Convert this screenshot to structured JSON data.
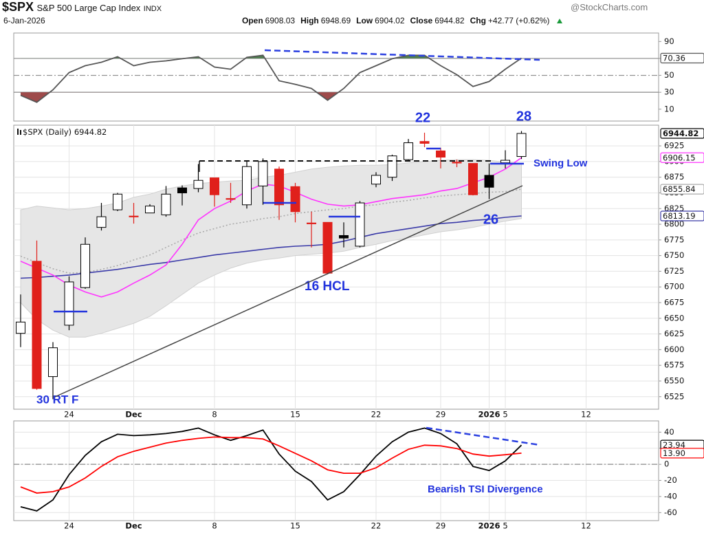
{
  "header": {
    "symbol": "$SPX",
    "name": "S&P 500 Large Cap Index",
    "exchange": "INDX",
    "date": "6-Jan-2026",
    "source": "@StockCharts.com",
    "quote": [
      {
        "label": "Open",
        "value": 6908.03
      },
      {
        "label": "High",
        "value": 6948.69
      },
      {
        "label": "Low",
        "value": 6904.02
      },
      {
        "label": "Close",
        "value": 6944.82
      },
      {
        "label": "Chg",
        "value": "+42.77 (+0.62%)"
      }
    ]
  },
  "chart_data": [
    {
      "type": "line",
      "ylim": [
        -4,
        100
      ],
      "yticks": [
        10,
        30,
        50,
        70,
        90
      ],
      "grid": false,
      "hlines": [
        {
          "value": 70
        },
        {
          "value": 50,
          "dash": "dashdot"
        },
        {
          "value": 30
        }
      ],
      "fill_above": {
        "level": 70,
        "color": "#4f7f4f"
      },
      "fill_below": {
        "level": 30,
        "color": "#9e4a4a"
      },
      "series": [
        {
          "color": "#555555",
          "values": [
            26.3,
            18.2,
            32.9,
            53.3,
            61.4,
            65.5,
            72,
            61.4,
            65.5,
            67.1,
            69.6,
            72,
            59.8,
            57.3,
            71.2,
            73.7,
            43.5,
            39.4,
            34.5,
            20.6,
            34.5,
            53.3,
            61.4,
            69.6,
            73.7,
            73.7,
            61.4,
            50.8,
            36.9,
            42.7,
            57.3,
            70.36,
            null,
            null,
            null,
            null,
            null,
            null,
            null,
            null
          ]
        }
      ]
    },
    {
      "type": "candlestick",
      "label": "$SPX (Daily)",
      "categories": [
        null,
        null,
        null,
        "24",
        null,
        null,
        null,
        "Dec",
        null,
        null,
        null,
        null,
        "8",
        null,
        null,
        null,
        null,
        "15",
        null,
        null,
        null,
        null,
        "22",
        null,
        null,
        null,
        "29",
        null,
        null,
        "2026",
        "5",
        null,
        null,
        null,
        null,
        "12",
        null,
        null,
        null,
        null
      ],
      "open": [
        6626,
        6741,
        6557,
        6639,
        6699,
        6795,
        6823,
        6813,
        6818,
        6815,
        6858,
        6857,
        6874,
        6841,
        6831,
        6861,
        6888,
        6860,
        6802,
        6803,
        6782,
        6765,
        6864,
        6875,
        6903,
        6932,
        6917,
        6899,
        6897,
        6878,
        6898,
        6908.03,
        null,
        null,
        null,
        null,
        null,
        null,
        null,
        null
      ],
      "high": [
        6688,
        6774,
        6612,
        6717,
        6779,
        6834,
        6850,
        6834,
        6832,
        6861,
        6862,
        6896,
        6874,
        6866,
        6900,
        6905,
        6892,
        6866,
        6820,
        6803,
        6803,
        6837,
        6883,
        6911,
        6936,
        6946,
        6922,
        6903,
        6897,
        6897,
        6918,
        6948.69,
        null,
        null,
        null,
        null,
        null,
        null,
        null,
        null
      ],
      "low": [
        6604,
        6536,
        6521,
        6631,
        6697,
        6790,
        6821,
        6801,
        6818,
        6812,
        6830,
        6851,
        6828,
        6834,
        6825,
        6831,
        6807,
        6803,
        6763,
        6720,
        6763,
        6763,
        6859,
        6869,
        6900,
        6923,
        6889,
        6891,
        6846,
        6840,
        6889,
        6904.02,
        null,
        null,
        null,
        null,
        null,
        null,
        null,
        null
      ],
      "close": [
        6644,
        6538,
        6603,
        6708,
        6768,
        6812,
        6848,
        6812,
        6829,
        6848,
        6850,
        6870,
        6847,
        6840,
        6892,
        6900,
        6831,
        6820,
        6801,
        6722,
        6778,
        6834,
        6878,
        6909,
        6930,
        6929,
        6907,
        6898,
        6847,
        6859,
        6902,
        6944.82,
        null,
        null,
        null,
        null,
        null,
        null,
        null,
        null
      ],
      "up_color": "#000000",
      "down_color": "#e0201b",
      "band": {
        "color": "#e6e6e6",
        "upper": [
          6823,
          6829,
          6826,
          6823,
          6825,
          6829,
          6834,
          6843,
          6848,
          6856,
          6861,
          6865,
          6867,
          6869,
          6870,
          6875,
          6878,
          6883,
          6888,
          6891,
          6893,
          6894,
          6894,
          6895,
          6898,
          6900,
          6902,
          6903,
          6903,
          6902,
          6899,
          6897,
          null,
          null,
          null,
          null,
          null,
          null,
          null,
          null
        ],
        "lower": [
          6675,
          6648,
          6631,
          6620,
          6620,
          6626,
          6634,
          6642,
          6653,
          6670,
          6688,
          6706,
          6719,
          6730,
          6738,
          6743,
          6746,
          6750,
          6752,
          6754,
          6757,
          6763,
          6768,
          6774,
          6778,
          6783,
          6788,
          6791,
          6795,
          6800,
          6805,
          6809,
          null,
          null,
          null,
          null,
          null,
          null,
          null,
          null
        ]
      },
      "overlays": [
        {
          "color": "#aaaaaa",
          "dash": "dotted",
          "values": [
            6749,
            6739,
            6729,
            6722,
            6723,
            6728,
            6734,
            6743,
            6751,
            6763,
            6775,
            6786,
            6793,
            6800,
            6804,
            6809,
            6812,
            6817,
            6820,
            6823,
            6825,
            6829,
            6831,
            6835,
            6838,
            6842,
            6845,
            6847,
            6849,
            6851,
            6852,
            6855.84,
            null,
            null,
            null,
            null,
            null,
            null,
            null,
            null
          ]
        },
        {
          "color": "#3a3aa8",
          "values": [
            6714,
            6715,
            6717,
            6719,
            6722,
            6725,
            6728,
            6732,
            6736,
            6739,
            6743,
            6747,
            6751,
            6754,
            6757,
            6760,
            6763,
            6765,
            6766,
            6768,
            6773,
            6779,
            6785,
            6789,
            6793,
            6797,
            6801,
            6803,
            6806,
            6808,
            6811,
            6813.19,
            null,
            null,
            null,
            null,
            null,
            null,
            null,
            null
          ]
        },
        {
          "color": "#ff33ff",
          "values": [
            6741,
            6730,
            6719,
            6703,
            6692,
            6684,
            6692,
            6706,
            6719,
            6735,
            6768,
            6807,
            6825,
            6837,
            6853,
            6864,
            6861,
            6851,
            6840,
            6832,
            6829,
            6831,
            6836,
            6841,
            6844,
            6847,
            6853,
            6857,
            6866,
            6875,
            6888,
            6906.15,
            null,
            null,
            null,
            null,
            null,
            null,
            null,
            null
          ]
        }
      ],
      "ylim": [
        6505,
        6958
      ],
      "yticks": [
        6525,
        6550,
        6575,
        6600,
        6625,
        6650,
        6675,
        6700,
        6725,
        6750,
        6775,
        6800,
        6825,
        6850,
        6875,
        6900,
        6925
      ],
      "grid": true,
      "annotations": [
        "22",
        "28",
        "26",
        "30 RT F",
        "16 HCL",
        "Swing Low"
      ]
    },
    {
      "type": "line",
      "ylim": [
        -70,
        54
      ],
      "yticks": [
        -60,
        -40,
        -20,
        0,
        20,
        40
      ],
      "grid": true,
      "categories": [
        null,
        null,
        null,
        "24",
        null,
        null,
        null,
        "Dec",
        null,
        null,
        null,
        null,
        "8",
        null,
        null,
        null,
        null,
        "15",
        null,
        null,
        null,
        null,
        "22",
        null,
        null,
        null,
        "29",
        null,
        null,
        "2026",
        "5",
        null,
        null,
        null,
        null,
        "12",
        null,
        null,
        null,
        null
      ],
      "hlines": [
        {
          "value": 0,
          "dash": "dashdot"
        }
      ],
      "series": [
        {
          "color": "#000000",
          "values": [
            -52.8,
            -57.9,
            -44.3,
            -12.8,
            11.1,
            28.1,
            37.4,
            35.7,
            36.6,
            38.3,
            40.9,
            45.1,
            36.6,
            29.8,
            35.7,
            42.6,
            12.8,
            -8.5,
            -21.3,
            -44.3,
            -34,
            -12.8,
            10.2,
            28.1,
            40,
            45.1,
            38.3,
            25.5,
            -2.6,
            -7.7,
            4.3,
            23.94,
            null,
            null,
            null,
            null,
            null,
            null,
            null,
            null
          ]
        },
        {
          "color": "#ff0000",
          "values": [
            -28.1,
            -35.7,
            -34,
            -28.1,
            -17,
            -2.6,
            9.4,
            16.2,
            21.3,
            26.4,
            29.8,
            32.3,
            34,
            33.2,
            33.2,
            31.5,
            23,
            13.6,
            4.3,
            -6.8,
            -11.1,
            -11.1,
            -4.3,
            7.7,
            18.7,
            23.8,
            23,
            19.6,
            12.8,
            10.2,
            11.9,
            13.9,
            null,
            null,
            null,
            null,
            null,
            null,
            null,
            null
          ],
          "value_labels": [
            null,
            null,
            null,
            null,
            null,
            null,
            null,
            null,
            null,
            null,
            null,
            null,
            null,
            null,
            null,
            null,
            null,
            null,
            null,
            null,
            null,
            null,
            null,
            null,
            null,
            null,
            null,
            null,
            null,
            null,
            null,
            "13.90",
            null,
            null,
            null,
            null,
            null,
            null,
            null,
            null
          ]
        }
      ],
      "annotations": [
        "Bearish TSI Divergence"
      ]
    }
  ]
}
